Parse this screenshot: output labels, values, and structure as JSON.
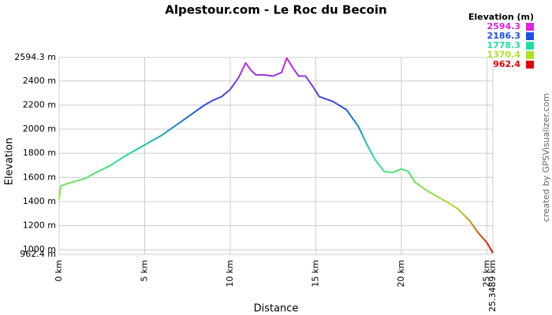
{
  "chart_data": {
    "type": "line",
    "title": "Alpestour.com - Le Roc du Becoin",
    "x_label": "Distance",
    "y_label": "Elevation",
    "x": [
      0,
      0.1,
      0.5,
      1,
      1.5,
      2,
      3,
      4,
      5,
      6,
      7,
      8,
      8.5,
      9,
      9.5,
      10,
      10.5,
      10.9,
      11.2,
      11.5,
      12,
      12.5,
      13,
      13.3,
      13.7,
      14,
      14.4,
      14.8,
      15.2,
      16,
      16.8,
      17.5,
      18,
      18.5,
      19,
      19.5,
      20,
      20.4,
      20.8,
      21.5,
      22.5,
      23.3,
      24,
      24.5,
      25,
      25.3489
    ],
    "series": [
      {
        "name": "Elevation",
        "values": [
          1420,
          1530,
          1550,
          1570,
          1590,
          1630,
          1700,
          1790,
          1870,
          1950,
          2050,
          2150,
          2200,
          2240,
          2270,
          2330,
          2430,
          2550,
          2490,
          2450,
          2450,
          2440,
          2470,
          2590,
          2500,
          2440,
          2440,
          2360,
          2270,
          2230,
          2160,
          2020,
          1870,
          1740,
          1650,
          1640,
          1670,
          1650,
          1560,
          1490,
          1410,
          1340,
          1240,
          1140,
          1060,
          975
        ]
      }
    ],
    "xlim": [
      0,
      25.3489
    ],
    "xticks": [
      {
        "value": 0,
        "label": "0 km"
      },
      {
        "value": 5,
        "label": "5 km"
      },
      {
        "value": 10,
        "label": "10 km"
      },
      {
        "value": 15,
        "label": "15 km"
      },
      {
        "value": 20,
        "label": "20 km"
      },
      {
        "value": 25,
        "label": "25 km"
      },
      {
        "value": 25.3489,
        "label": "25.3489 km"
      }
    ],
    "ylim": [
      962.4,
      2594.3
    ],
    "yticks": [
      {
        "value": 962.4,
        "label": "962.4 m"
      },
      {
        "value": 1000,
        "label": "1000 m"
      },
      {
        "value": 1200,
        "label": "1200 m"
      },
      {
        "value": 1400,
        "label": "1400 m"
      },
      {
        "value": 1600,
        "label": "1600 m"
      },
      {
        "value": 1800,
        "label": "1800 m"
      },
      {
        "value": 2000,
        "label": "2000 m"
      },
      {
        "value": 2200,
        "label": "2200 m"
      },
      {
        "value": 2400,
        "label": "2400 m"
      },
      {
        "value": 2594.3,
        "label": "2594.3 m"
      }
    ],
    "grid": true,
    "color_scale_title": "Elevation (m)",
    "color_scale": [
      {
        "value": 2594.3,
        "color": "#e020e0"
      },
      {
        "value": 2186.3,
        "color": "#2050e0"
      },
      {
        "value": 1778.3,
        "color": "#20e0a0"
      },
      {
        "value": 1370.4,
        "color": "#b0e020"
      },
      {
        "value": 962.4,
        "color": "#e00000"
      }
    ],
    "credit": "created by GPSVisualizer.com"
  }
}
